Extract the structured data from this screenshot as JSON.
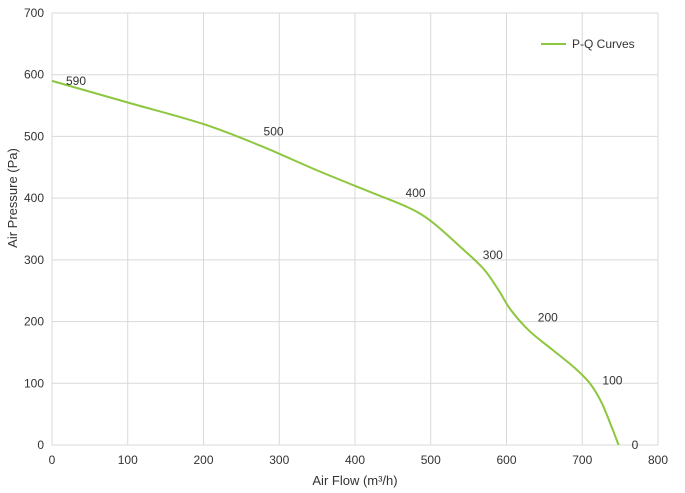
{
  "chart_data": {
    "type": "line",
    "title": "",
    "xlabel": "Air Flow  (m³/h)",
    "ylabel": "Air Pressure  (Pa)",
    "xlim": [
      0,
      800
    ],
    "ylim": [
      0,
      700
    ],
    "x_ticks": [
      0,
      100,
      200,
      300,
      400,
      500,
      600,
      700,
      800
    ],
    "y_ticks": [
      0,
      100,
      200,
      300,
      400,
      500,
      600,
      700
    ],
    "grid": true,
    "legend_position": "top-right",
    "series": [
      {
        "name": "P-Q Curves",
        "color": "#8dc63f",
        "x": [
          0,
          100,
          200,
          275,
          350,
          420,
          470,
          500,
          540,
          570,
          590,
          605,
          630,
          660,
          690,
          710,
          725,
          737,
          748
        ],
        "y": [
          590,
          555,
          520,
          485,
          445,
          410,
          385,
          363,
          320,
          285,
          250,
          220,
          185,
          155,
          125,
          100,
          70,
          35,
          0
        ]
      }
    ],
    "annotations": [
      {
        "x": 0,
        "y": 590,
        "text": "590"
      },
      {
        "x": 270,
        "y": 500,
        "text": "500"
      },
      {
        "x": 472,
        "y": 400,
        "text": "400"
      },
      {
        "x": 570,
        "y": 300,
        "text": "300"
      },
      {
        "x": 636,
        "y": 200,
        "text": "200"
      },
      {
        "x": 720,
        "y": 100,
        "text": "100"
      },
      {
        "x": 748,
        "y": 0,
        "text": "0"
      }
    ]
  }
}
